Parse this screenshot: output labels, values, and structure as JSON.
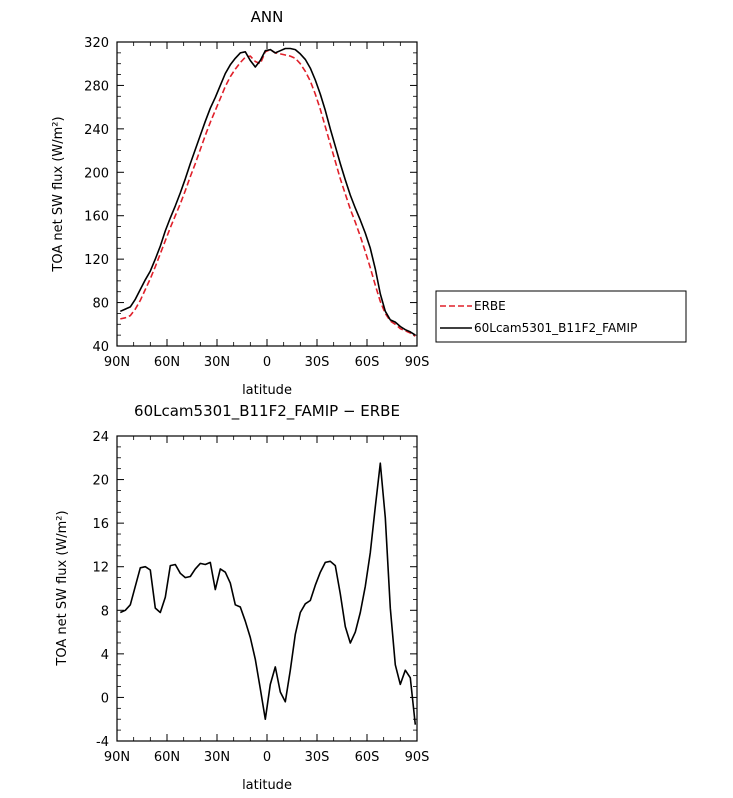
{
  "chart_data": [
    {
      "type": "line",
      "title": "ANN",
      "xlabel": "latitude",
      "ylabel": "TOA net SW flux (W/m²)",
      "xlim": [
        -90,
        90
      ],
      "ylim": [
        40,
        320
      ],
      "x_ticks": [
        -90,
        -60,
        -30,
        0,
        30,
        60,
        90
      ],
      "x_tick_labels": [
        "90N",
        "60N",
        "30N",
        "0",
        "30S",
        "60S",
        "90S"
      ],
      "y_ticks": [
        40,
        80,
        120,
        160,
        200,
        240,
        280,
        320
      ],
      "legend": {
        "placement": "right-outside",
        "entries": [
          "ERBE",
          "60Lcam5301_B11F2_FAMIP"
        ]
      },
      "series": [
        {
          "name": "ERBE",
          "color": "#e0202a",
          "dashed": true,
          "x": [
            -88,
            -85,
            -82,
            -79,
            -76,
            -73,
            -70,
            -67,
            -64,
            -61,
            -58,
            -55,
            -52,
            -49,
            -46,
            -43,
            -40,
            -37,
            -34,
            -31,
            -28,
            -25,
            -22,
            -19,
            -16,
            -13,
            -10,
            -7,
            -4,
            -1,
            2,
            5,
            8,
            11,
            14,
            17,
            20,
            23,
            26,
            29,
            32,
            35,
            38,
            41,
            44,
            47,
            50,
            53,
            56,
            59,
            62,
            65,
            68,
            71,
            74,
            77,
            80,
            83,
            86,
            89
          ],
          "values": [
            65,
            66,
            68,
            74,
            82,
            92,
            102,
            113,
            125,
            137,
            149,
            160,
            171,
            183,
            196,
            208,
            221,
            234,
            246,
            257,
            268,
            279,
            288,
            295,
            301,
            306,
            307,
            302,
            300,
            311,
            313,
            310,
            309,
            308,
            307,
            305,
            300,
            293,
            284,
            272,
            258,
            242,
            226,
            210,
            194,
            180,
            166,
            154,
            141,
            127,
            112,
            96,
            81,
            70,
            63,
            60,
            56,
            54,
            52,
            49
          ]
        },
        {
          "name": "60Lcam5301_B11F2_FAMIP",
          "color": "#000000",
          "dashed": false,
          "x": [
            -88,
            -85,
            -82,
            -79,
            -76,
            -73,
            -70,
            -67,
            -64,
            -61,
            -58,
            -55,
            -52,
            -49,
            -46,
            -43,
            -40,
            -37,
            -34,
            -31,
            -28,
            -25,
            -22,
            -19,
            -16,
            -13,
            -10,
            -7,
            -4,
            -1,
            2,
            5,
            8,
            11,
            14,
            17,
            20,
            23,
            26,
            29,
            32,
            35,
            38,
            41,
            44,
            47,
            50,
            53,
            56,
            59,
            62,
            65,
            68,
            71,
            74,
            77,
            80,
            83,
            86,
            89
          ],
          "values": [
            72,
            74,
            76,
            83,
            92,
            101,
            109,
            120,
            132,
            146,
            158,
            169,
            181,
            194,
            208,
            221,
            234,
            247,
            259,
            269,
            280,
            291,
            299,
            305,
            310,
            311,
            303,
            297,
            303,
            312,
            313,
            310,
            312,
            314,
            314,
            313,
            309,
            304,
            296,
            285,
            272,
            257,
            240,
            224,
            208,
            193,
            179,
            167,
            156,
            144,
            130,
            111,
            88,
            72,
            64,
            62,
            58,
            55,
            53,
            50
          ]
        }
      ]
    },
    {
      "type": "line",
      "title": "60Lcam5301_B11F2_FAMIP − ERBE",
      "xlabel": "latitude",
      "ylabel": "TOA net SW flux (W/m²)",
      "xlim": [
        -90,
        90
      ],
      "ylim": [
        -4,
        24
      ],
      "x_ticks": [
        -90,
        -60,
        -30,
        0,
        30,
        60,
        90
      ],
      "x_tick_labels": [
        "90N",
        "60N",
        "30N",
        "0",
        "30S",
        "60S",
        "90S"
      ],
      "y_ticks": [
        -4,
        0,
        4,
        8,
        12,
        16,
        20,
        24
      ],
      "series": [
        {
          "color": "#000000",
          "dashed": false,
          "x": [
            -88,
            -85,
            -82,
            -79,
            -76,
            -73,
            -70,
            -67,
            -64,
            -61,
            -58,
            -55,
            -52,
            -49,
            -46,
            -43,
            -40,
            -37,
            -34,
            -31,
            -28,
            -25,
            -22,
            -19,
            -16,
            -13,
            -10,
            -7,
            -4,
            -1,
            2,
            5,
            8,
            11,
            14,
            17,
            20,
            23,
            26,
            29,
            32,
            35,
            38,
            41,
            44,
            47,
            50,
            53,
            56,
            59,
            62,
            65,
            68,
            71,
            74,
            77,
            80,
            83,
            86,
            89
          ],
          "values": [
            7.8,
            8.0,
            8.5,
            10.2,
            11.9,
            12.0,
            11.7,
            8.2,
            7.8,
            9.2,
            12.1,
            12.2,
            11.4,
            11.0,
            11.1,
            11.8,
            12.3,
            12.2,
            12.4,
            9.9,
            11.8,
            11.5,
            10.5,
            8.5,
            8.3,
            7.0,
            5.5,
            3.5,
            0.8,
            -2.0,
            1.2,
            2.8,
            0.5,
            -0.4,
            2.5,
            5.8,
            7.8,
            8.6,
            8.9,
            10.3,
            11.5,
            12.4,
            12.5,
            12.1,
            9.5,
            6.5,
            5.0,
            6.0,
            7.8,
            10.2,
            13.3,
            17.5,
            21.5,
            16.5,
            8.2,
            3.0,
            1.2,
            2.5,
            1.8,
            -2.5
          ]
        }
      ]
    }
  ]
}
